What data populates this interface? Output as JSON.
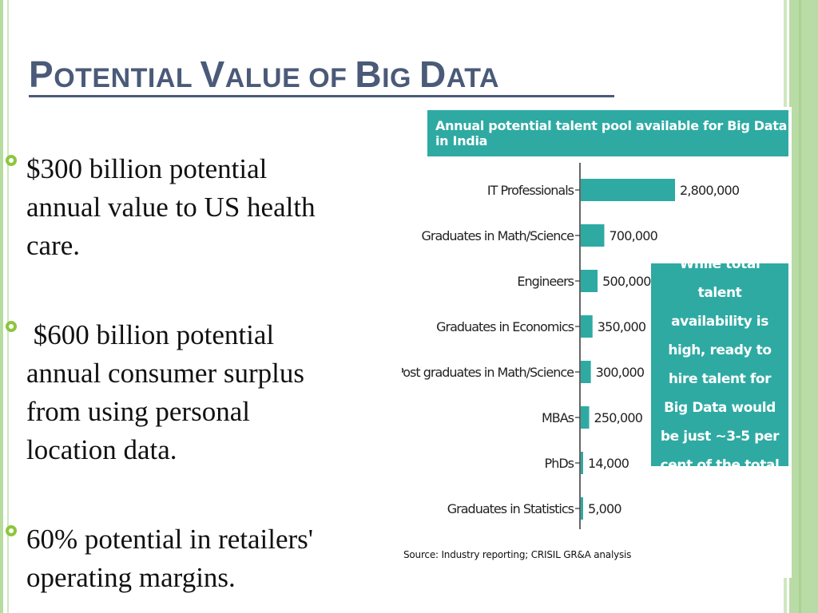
{
  "slide": {
    "title_parts": [
      {
        "text": "P",
        "size": "big"
      },
      {
        "text": "OTENTIAL ",
        "size": "small"
      },
      {
        "text": "V",
        "size": "big"
      },
      {
        "text": "ALUE OF ",
        "size": "small"
      },
      {
        "text": "B",
        "size": "big"
      },
      {
        "text": "IG ",
        "size": "small"
      },
      {
        "text": "D",
        "size": "big"
      },
      {
        "text": "ATA",
        "size": "small"
      }
    ],
    "bullets": [
      {
        "lines": [
          "$300 billion potential",
          "annual value to US health",
          "care."
        ]
      },
      {
        "lines": [
          " $600 billion potential",
          "annual consumer surplus",
          "from using personal",
          "location data."
        ]
      },
      {
        "lines": [
          "60% potential in retailers'",
          "operating margins."
        ]
      }
    ]
  },
  "colors": {
    "accent": "#2eaaa3",
    "title": "#4a5a78",
    "bullet": "#8dc63f"
  },
  "chart_data": {
    "type": "bar",
    "orientation": "horizontal",
    "title": "Annual potential talent pool available for Big Data in India",
    "categories": [
      "IT Professionals",
      "Graduates in Math/Science",
      "Engineers",
      "Graduates in Economics",
      "Post graduates in Math/Science",
      "MBAs",
      "PhDs",
      "Graduates in Statistics"
    ],
    "values": [
      2800000,
      700000,
      500000,
      350000,
      300000,
      250000,
      14000,
      5000
    ],
    "value_labels": [
      "2,800,000",
      "700,000",
      "500,000",
      "350,000",
      "300,000",
      "250,000",
      "14,000",
      "5,000"
    ],
    "xlim": [
      0,
      2800000
    ],
    "grid": false,
    "annotation": "While total talent availability is high, ready to hire talent for Big Data would be just ~3-5 per cent of the total",
    "source": "Source: Industry reporting; CRISIL GR&A analysis"
  }
}
